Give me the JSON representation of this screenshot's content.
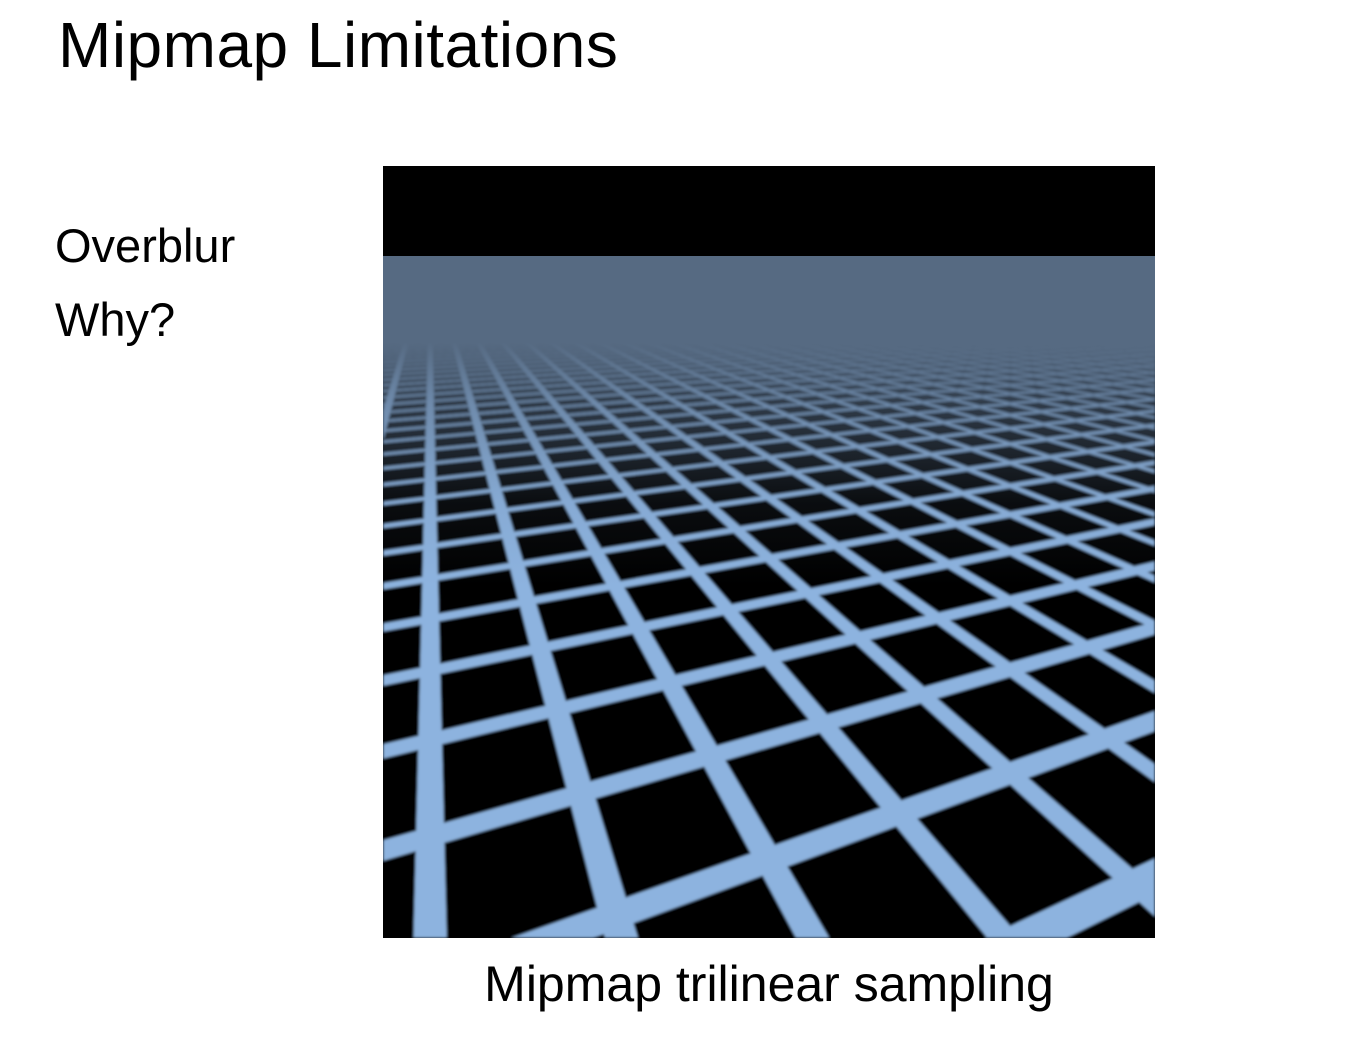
{
  "slide": {
    "title": "Mipmap Limitations",
    "bullets": [
      "Overblur",
      "Why?"
    ],
    "figure": {
      "caption": "Mipmap trilinear sampling",
      "grid_line_color": "#8db3df",
      "horizon_haze_color": "#566a82",
      "sky_color": "#000000"
    }
  }
}
